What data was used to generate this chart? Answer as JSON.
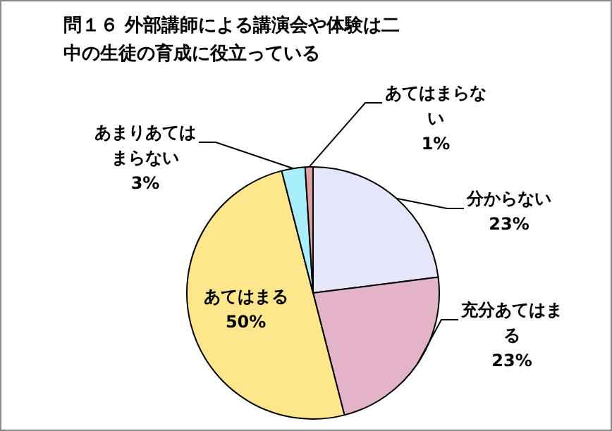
{
  "chart_data": {
    "type": "pie",
    "title": "問１６ 外部講師による講演会や体験は二中の生徒の育成に役立っている",
    "categories": [
      "分からない",
      "充分あてはまる",
      "あてはまる",
      "あまりあてはまらない",
      "あてはまらない"
    ],
    "values": [
      23,
      23,
      50,
      3,
      1
    ],
    "value_labels": [
      "23%",
      "23%",
      "50%",
      "3%",
      "1%"
    ],
    "colors": [
      "#e6e6fb",
      "#e3b3c8",
      "#fde78a",
      "#a8eefc",
      "#e0a0a0"
    ],
    "legend": false
  }
}
